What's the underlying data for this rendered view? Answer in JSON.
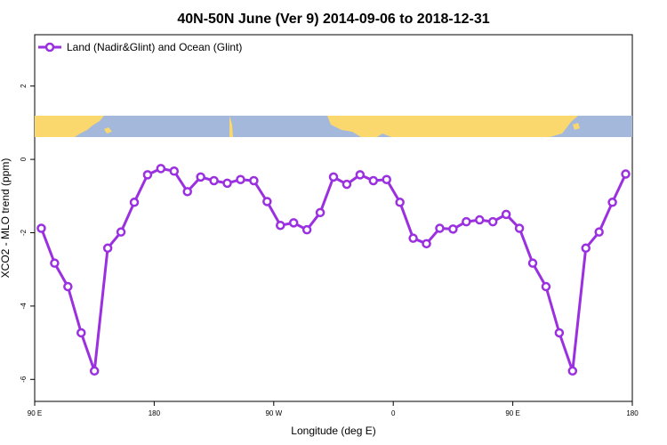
{
  "chart_data": {
    "type": "line",
    "title": "40N-50N June (Ver 9)   2014-09-06 to 2018-12-31",
    "xlabel": "Longitude (deg E)",
    "ylabel": "XCO2 - MLO trend (ppm)",
    "xlim": [
      90,
      540
    ],
    "ylim": [
      -6.6,
      3.4
    ],
    "x_ticks": [
      {
        "value": 90,
        "label": "90 E"
      },
      {
        "value": 180,
        "label": "180"
      },
      {
        "value": 270,
        "label": "90 W"
      },
      {
        "value": 360,
        "label": "0"
      },
      {
        "value": 450,
        "label": "90 E"
      },
      {
        "value": 540,
        "label": "180"
      }
    ],
    "y_ticks": [
      {
        "value": -6,
        "label": "-6"
      },
      {
        "value": -4,
        "label": "-4"
      },
      {
        "value": -2,
        "label": "-2"
      },
      {
        "value": 0,
        "label": "0"
      },
      {
        "value": 2,
        "label": "2"
      }
    ],
    "grid": false,
    "legend_position": "top-left",
    "colors": {
      "series": "#9b30e0",
      "land": "#fbd86e",
      "ocean": "#a4b8dc"
    },
    "series": [
      {
        "name": "Land (Nadir&Glint) and Ocean (Glint)",
        "x": [
          95,
          105,
          115,
          125,
          135,
          145,
          155,
          165,
          175,
          185,
          195,
          205,
          215,
          225,
          235,
          245,
          255,
          265,
          275,
          285,
          295,
          305,
          315,
          325,
          335,
          345,
          355,
          365,
          375,
          385,
          395,
          405,
          415,
          425,
          435,
          445,
          455,
          465,
          475,
          485,
          495,
          505,
          515,
          525,
          535
        ],
        "y": [
          -1.88,
          -2.83,
          -3.47,
          -4.73,
          -5.77,
          -2.42,
          -1.98,
          -1.17,
          -0.42,
          -0.25,
          -0.32,
          -0.88,
          -0.48,
          -0.58,
          -0.65,
          -0.55,
          -0.58,
          -1.15,
          -1.8,
          -1.73,
          -1.92,
          -1.45,
          -0.48,
          -0.68,
          -0.42,
          -0.58,
          -0.55,
          -1.17,
          -2.15,
          -2.3,
          -1.88,
          -1.9,
          -1.7,
          -1.65,
          -1.7,
          -1.5,
          -1.88,
          -2.83,
          -3.47,
          -4.73,
          -5.77,
          -2.42,
          -1.98,
          -1.17,
          -0.4
        ]
      }
    ]
  }
}
